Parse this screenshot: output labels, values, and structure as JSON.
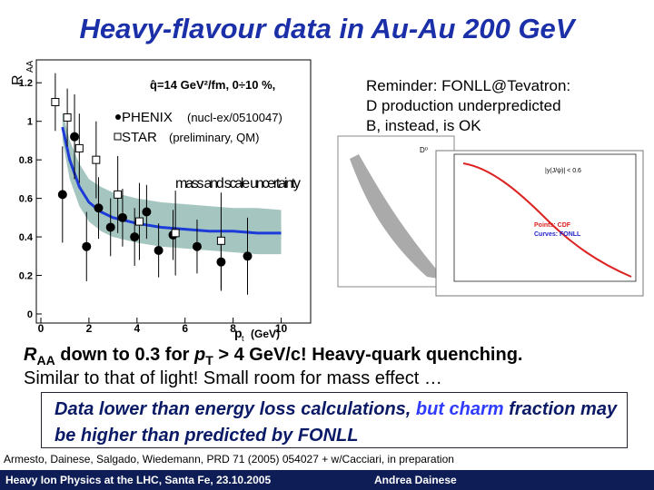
{
  "title": "Heavy-flavour data in Au-Au 200 GeV",
  "plot": {
    "y_label": "R",
    "y_label_sub": "AA",
    "x_label": "p",
    "x_label_sub": "t",
    "x_unit": "(GeV)",
    "model": "q̂=14 GeV²/fm, 0÷10 %,",
    "band_label": "mass and scale uncertainty",
    "xlim": [
      0,
      11
    ],
    "ylim": [
      0,
      1.3
    ],
    "xticks": [
      0,
      2,
      4,
      6,
      8,
      10
    ],
    "yticks": [
      0,
      0.2,
      0.4,
      0.6,
      0.8,
      1,
      1.2
    ],
    "curve_x": [
      0.9,
      1.2,
      1.6,
      2,
      2.5,
      3,
      4,
      5,
      6,
      7,
      8,
      9,
      10
    ],
    "curve_y": [
      0.97,
      0.8,
      0.66,
      0.58,
      0.53,
      0.5,
      0.47,
      0.45,
      0.44,
      0.43,
      0.43,
      0.42,
      0.42
    ],
    "band_upper": [
      1.05,
      0.9,
      0.78,
      0.7,
      0.66,
      0.63,
      0.6,
      0.58,
      0.57,
      0.56,
      0.55,
      0.55,
      0.54
    ],
    "band_lower": [
      0.9,
      0.7,
      0.56,
      0.48,
      0.43,
      0.4,
      0.37,
      0.35,
      0.34,
      0.33,
      0.32,
      0.31,
      0.31
    ],
    "series": [
      {
        "name": "PHENIX",
        "note": "(nucl-ex/0510047)",
        "marker": "circle",
        "x": [
          0.9,
          1.4,
          1.9,
          2.4,
          2.9,
          3.4,
          3.9,
          4.4,
          4.9,
          5.5,
          6.5,
          7.5,
          8.6
        ],
        "values": [
          0.62,
          0.92,
          0.35,
          0.55,
          0.45,
          0.5,
          0.4,
          0.53,
          0.33,
          0.41,
          0.35,
          0.27,
          0.3
        ],
        "errors": [
          0.25,
          0.22,
          0.18,
          0.16,
          0.15,
          0.15,
          0.15,
          0.14,
          0.14,
          0.13,
          0.14,
          0.15,
          0.2
        ]
      },
      {
        "name": "STAR",
        "note": "(preliminary, QM)",
        "marker": "square",
        "x": [
          0.6,
          1.1,
          1.6,
          2.3,
          3.2,
          4.1,
          5.6,
          7.5
        ],
        "values": [
          1.1,
          1.02,
          0.86,
          0.8,
          0.62,
          0.48,
          0.42,
          0.38
        ],
        "errors": [
          0.15,
          0.15,
          0.18,
          0.2,
          0.2,
          0.2,
          0.22,
          0.25
        ]
      }
    ]
  },
  "reminder": [
    "Reminder: FONLL@Tevatron:",
    "D production underpredicted",
    "B, instead, is OK"
  ],
  "mid_plot": {
    "label": "D⁰"
  },
  "right_plot": {
    "cut": "|y(J/ψ)| < 0.6",
    "legend": [
      "Points: CDF",
      "Curves: FONLL"
    ]
  },
  "line1": [
    "R",
    "AA",
    " down to 0.3 for ",
    "p",
    "T",
    " > 4 GeV/c! Heavy-quark quenching."
  ],
  "line2": "Similar to that of light! Small room for mass effect …",
  "box": [
    "Data lower than energy loss calculations, ",
    "but charm",
    " fraction may be higher than predicted by FONLL"
  ],
  "citation": "Armesto, Dainese, Salgado, Wiedemann, PRD 71 (2005) 054027 + w/Cacciari, in preparation",
  "footer": {
    "left": "Heavy Ion Physics at the LHC, Santa Fe, 23.10.2005",
    "right": "Andrea Dainese"
  }
}
